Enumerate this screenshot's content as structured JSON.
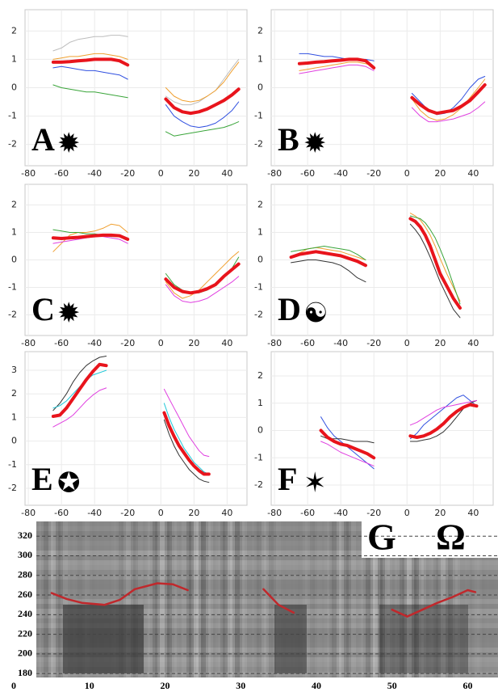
{
  "chart_data": [
    {
      "type": "line",
      "label": "A",
      "symbol": "✹",
      "grid": true,
      "xlim": [
        -82,
        52
      ],
      "ylim": [
        -2.75,
        2.75
      ],
      "xticks": [
        -80,
        -60,
        -40,
        -20,
        0,
        20,
        40
      ],
      "yticks": [
        -2,
        -1,
        0,
        1,
        2
      ],
      "x": [
        -65,
        -60,
        -55,
        -50,
        -45,
        -40,
        -35,
        -30,
        -25,
        -20,
        -8,
        3,
        8,
        13,
        18,
        23,
        28,
        33,
        38,
        43,
        47
      ],
      "series": [
        {
          "color": "#bdbdbd",
          "width": 1,
          "values": [
            1.3,
            1.4,
            1.6,
            1.7,
            1.75,
            1.8,
            1.8,
            1.85,
            1.85,
            1.8,
            null,
            -0.3,
            -0.5,
            -0.6,
            -0.6,
            -0.5,
            -0.3,
            -0.1,
            0.3,
            0.7,
            1.0
          ]
        },
        {
          "color": "#3aa53a",
          "width": 1,
          "values": [
            0.1,
            0.0,
            -0.05,
            -0.1,
            -0.15,
            -0.15,
            -0.2,
            -0.25,
            -0.3,
            -0.35,
            null,
            -1.55,
            -1.7,
            -1.65,
            -1.6,
            -1.55,
            -1.5,
            -1.45,
            -1.4,
            -1.3,
            -1.2
          ]
        },
        {
          "color": "#3050e0",
          "width": 1,
          "values": [
            0.7,
            0.75,
            0.7,
            0.65,
            0.6,
            0.6,
            0.55,
            0.5,
            0.45,
            0.3,
            null,
            -0.6,
            -1.0,
            -1.2,
            -1.35,
            -1.4,
            -1.35,
            -1.25,
            -1.05,
            -0.8,
            -0.5
          ]
        },
        {
          "color": "#f0a030",
          "width": 1,
          "values": [
            1.0,
            1.05,
            1.1,
            1.1,
            1.15,
            1.2,
            1.2,
            1.15,
            1.1,
            1.0,
            null,
            0.0,
            -0.3,
            -0.45,
            -0.5,
            -0.45,
            -0.3,
            -0.1,
            0.2,
            0.6,
            0.9
          ]
        },
        {
          "color": "#e8141c",
          "width": 4,
          "values": [
            0.9,
            0.9,
            0.92,
            0.95,
            0.97,
            1.0,
            1.0,
            1.0,
            0.95,
            0.8,
            null,
            -0.4,
            -0.7,
            -0.85,
            -0.9,
            -0.85,
            -0.75,
            -0.6,
            -0.45,
            -0.25,
            -0.05
          ]
        }
      ]
    },
    {
      "type": "line",
      "label": "B",
      "symbol": "✹",
      "grid": true,
      "xlim": [
        -82,
        52
      ],
      "ylim": [
        -2.75,
        2.75
      ],
      "xticks": [
        -80,
        -60,
        -40,
        -20,
        0,
        20,
        40
      ],
      "yticks": [
        -2,
        -1,
        0,
        1,
        2
      ],
      "x": [
        -65,
        -60,
        -55,
        -50,
        -45,
        -40,
        -35,
        -30,
        -25,
        -20,
        -8,
        3,
        8,
        13,
        18,
        23,
        28,
        33,
        38,
        43,
        47
      ],
      "series": [
        {
          "color": "#3050e0",
          "width": 1,
          "values": [
            1.2,
            1.2,
            1.15,
            1.1,
            1.1,
            1.05,
            1.0,
            1.0,
            1.0,
            0.95,
            null,
            -0.2,
            -0.5,
            -0.8,
            -0.95,
            -0.9,
            -0.7,
            -0.4,
            0.0,
            0.3,
            0.4
          ]
        },
        {
          "color": "#e040e0",
          "width": 1,
          "values": [
            0.5,
            0.55,
            0.6,
            0.65,
            0.7,
            0.75,
            0.8,
            0.8,
            0.75,
            0.6,
            null,
            -0.7,
            -1.0,
            -1.2,
            -1.2,
            -1.15,
            -1.1,
            -1.0,
            -0.9,
            -0.7,
            -0.5
          ]
        },
        {
          "color": "#f0a030",
          "width": 1,
          "values": [
            0.6,
            0.65,
            0.7,
            0.75,
            0.8,
            0.85,
            0.9,
            0.9,
            0.85,
            0.75,
            null,
            -0.4,
            -0.8,
            -1.05,
            -1.15,
            -1.1,
            -0.95,
            -0.7,
            -0.35,
            0.0,
            0.3
          ]
        },
        {
          "color": "#e8141c",
          "width": 4,
          "values": [
            0.85,
            0.87,
            0.9,
            0.92,
            0.95,
            0.97,
            1.0,
            1.0,
            0.95,
            0.7,
            null,
            -0.35,
            -0.6,
            -0.8,
            -0.9,
            -0.85,
            -0.8,
            -0.65,
            -0.45,
            -0.15,
            0.1
          ]
        }
      ]
    },
    {
      "type": "line",
      "label": "C",
      "symbol": "✹",
      "grid": true,
      "xlim": [
        -82,
        52
      ],
      "ylim": [
        -2.75,
        2.75
      ],
      "xticks": [
        -80,
        -60,
        -40,
        -20,
        0,
        20,
        40
      ],
      "yticks": [
        -2,
        -1,
        0,
        1,
        2
      ],
      "x": [
        -65,
        -60,
        -55,
        -50,
        -45,
        -40,
        -35,
        -30,
        -25,
        -20,
        -8,
        3,
        8,
        13,
        18,
        23,
        28,
        33,
        38,
        43,
        47
      ],
      "series": [
        {
          "color": "#f0a030",
          "width": 1,
          "values": [
            0.3,
            0.6,
            0.9,
            1.0,
            1.0,
            1.05,
            1.15,
            1.3,
            1.25,
            1.0,
            null,
            -0.8,
            -1.2,
            -1.4,
            -1.3,
            -1.1,
            -0.8,
            -0.5,
            -0.2,
            0.1,
            0.3
          ]
        },
        {
          "color": "#3aa53a",
          "width": 1,
          "values": [
            1.1,
            1.05,
            1.0,
            1.0,
            0.95,
            0.95,
            0.9,
            0.85,
            0.85,
            0.8,
            null,
            -0.5,
            -0.9,
            -1.1,
            -1.2,
            -1.2,
            -1.1,
            -0.9,
            -0.6,
            -0.3,
            0.1
          ]
        },
        {
          "color": "#e040e0",
          "width": 1,
          "values": [
            0.6,
            0.65,
            0.7,
            0.75,
            0.8,
            0.85,
            0.85,
            0.8,
            0.75,
            0.6,
            null,
            -0.9,
            -1.3,
            -1.5,
            -1.55,
            -1.5,
            -1.4,
            -1.2,
            -1.0,
            -0.8,
            -0.6
          ]
        },
        {
          "color": "#e8141c",
          "width": 4,
          "values": [
            0.8,
            0.78,
            0.8,
            0.82,
            0.85,
            0.88,
            0.9,
            0.9,
            0.88,
            0.75,
            null,
            -0.7,
            -1.0,
            -1.15,
            -1.2,
            -1.15,
            -1.05,
            -0.9,
            -0.6,
            -0.35,
            -0.15
          ]
        }
      ]
    },
    {
      "type": "line",
      "label": "D",
      "symbol": "☯",
      "grid": true,
      "xlim": [
        -82,
        52
      ],
      "ylim": [
        -2.75,
        2.75
      ],
      "xticks": [
        -80,
        -60,
        -40,
        -20,
        0,
        20,
        40
      ],
      "yticks": [
        -2,
        -1,
        0,
        1,
        2
      ],
      "x": [
        -70,
        -65,
        -60,
        -55,
        -50,
        -45,
        -40,
        -35,
        -30,
        -25,
        -10,
        2,
        5,
        8,
        11,
        14,
        17,
        20,
        24,
        28,
        32
      ],
      "series": [
        {
          "color": "#f0a030",
          "width": 1,
          "values": [
            0.1,
            0.25,
            0.4,
            0.45,
            0.4,
            0.35,
            0.3,
            0.2,
            0.1,
            0.0,
            null,
            1.7,
            1.6,
            1.45,
            1.2,
            0.9,
            0.5,
            0.05,
            -0.5,
            -1.0,
            -1.5
          ]
        },
        {
          "color": "#3aa53a",
          "width": 1,
          "values": [
            0.3,
            0.35,
            0.4,
            0.45,
            0.5,
            0.45,
            0.4,
            0.35,
            0.2,
            0.0,
            null,
            1.6,
            1.55,
            1.5,
            1.35,
            1.1,
            0.8,
            0.4,
            -0.2,
            -0.9,
            -1.6
          ]
        },
        {
          "color": "#333333",
          "width": 1,
          "values": [
            -0.1,
            -0.05,
            0.0,
            0.0,
            -0.05,
            -0.1,
            -0.2,
            -0.4,
            -0.65,
            -0.8,
            null,
            1.3,
            1.1,
            0.85,
            0.5,
            0.1,
            -0.35,
            -0.8,
            -1.3,
            -1.8,
            -2.1
          ]
        },
        {
          "color": "#e8141c",
          "width": 4,
          "values": [
            0.1,
            0.2,
            0.25,
            0.3,
            0.25,
            0.2,
            0.15,
            0.05,
            -0.05,
            -0.2,
            null,
            1.5,
            1.4,
            1.2,
            0.9,
            0.5,
            0.0,
            -0.5,
            -0.95,
            -1.4,
            -1.75
          ]
        }
      ]
    },
    {
      "type": "line",
      "label": "E",
      "symbol": "✪",
      "grid": true,
      "xlim": [
        -82,
        52
      ],
      "ylim": [
        -2.72,
        3.79
      ],
      "xticks": [
        -80,
        -60,
        -40,
        -20,
        0,
        20,
        40
      ],
      "yticks": [
        -2,
        -1,
        0,
        1,
        2,
        3
      ],
      "x": [
        -65,
        -61,
        -57,
        -53,
        -49,
        -45,
        -41,
        -37,
        -33,
        -10,
        2,
        5,
        8,
        11,
        14,
        17,
        20,
        23,
        26,
        29
      ],
      "series": [
        {
          "color": "#333333",
          "width": 1,
          "values": [
            1.3,
            1.6,
            2.0,
            2.5,
            2.9,
            3.2,
            3.4,
            3.55,
            3.6,
            null,
            0.9,
            0.3,
            -0.2,
            -0.6,
            -0.9,
            -1.2,
            -1.4,
            -1.6,
            -1.7,
            -1.75
          ]
        },
        {
          "color": "#e040e0",
          "width": 1,
          "values": [
            0.6,
            0.75,
            0.9,
            1.1,
            1.4,
            1.7,
            1.95,
            2.15,
            2.25,
            null,
            2.2,
            1.8,
            1.4,
            1.0,
            0.6,
            0.2,
            -0.1,
            -0.4,
            -0.6,
            -0.65
          ]
        },
        {
          "color": "#20c8d8",
          "width": 1,
          "values": [
            1.4,
            1.5,
            1.7,
            2.0,
            2.3,
            2.6,
            2.8,
            2.9,
            3.0,
            null,
            1.6,
            1.0,
            0.5,
            0.1,
            -0.3,
            -0.6,
            -0.9,
            -1.1,
            -1.3,
            -1.4
          ]
        },
        {
          "color": "#e8141c",
          "width": 4,
          "values": [
            1.05,
            1.1,
            1.4,
            1.8,
            2.2,
            2.6,
            2.95,
            3.25,
            3.2,
            null,
            1.2,
            0.65,
            0.2,
            -0.2,
            -0.5,
            -0.8,
            -1.05,
            -1.25,
            -1.4,
            -1.4
          ]
        }
      ]
    },
    {
      "type": "line",
      "label": "F",
      "symbol": "✶",
      "grid": true,
      "xlim": [
        -82,
        52
      ],
      "ylim": [
        -2.74,
        2.89
      ],
      "xticks": [
        -80,
        -60,
        -40,
        -20,
        0,
        20,
        40
      ],
      "yticks": [
        -2,
        -1,
        0,
        1,
        2
      ],
      "x": [
        -52,
        -48,
        -44,
        -40,
        -36,
        -32,
        -28,
        -24,
        -20,
        -10,
        2,
        6,
        10,
        14,
        18,
        22,
        26,
        30,
        34,
        38,
        42
      ],
      "series": [
        {
          "color": "#3050e0",
          "width": 1,
          "values": [
            0.5,
            0.1,
            -0.2,
            -0.4,
            -0.6,
            -0.8,
            -1.0,
            -1.2,
            -1.4,
            null,
            -0.3,
            -0.1,
            0.2,
            0.4,
            0.6,
            0.8,
            1.0,
            1.2,
            1.3,
            1.1,
            0.9
          ]
        },
        {
          "color": "#333333",
          "width": 1,
          "values": [
            -0.2,
            -0.3,
            -0.3,
            -0.3,
            -0.35,
            -0.4,
            -0.4,
            -0.4,
            -0.45,
            null,
            -0.4,
            -0.4,
            -0.35,
            -0.3,
            -0.2,
            -0.05,
            0.2,
            0.5,
            0.8,
            1.0,
            1.1
          ]
        },
        {
          "color": "#e040e0",
          "width": 1,
          "values": [
            -0.4,
            -0.5,
            -0.65,
            -0.8,
            -0.9,
            -1.0,
            -1.1,
            -1.2,
            -1.3,
            null,
            0.2,
            0.3,
            0.45,
            0.6,
            0.75,
            0.85,
            0.9,
            0.95,
            1.0,
            1.05,
            1.1
          ]
        },
        {
          "color": "#e8141c",
          "width": 4,
          "values": [
            0.0,
            -0.25,
            -0.4,
            -0.5,
            -0.55,
            -0.65,
            -0.75,
            -0.85,
            -1.0,
            null,
            -0.2,
            -0.25,
            -0.2,
            -0.1,
            0.05,
            0.25,
            0.5,
            0.7,
            0.85,
            0.95,
            0.9
          ]
        }
      ]
    },
    {
      "type": "spectrogram",
      "label": "G",
      "symbol": "Ω",
      "grid": true,
      "xlim": [
        0,
        64
      ],
      "ylim": [
        176,
        335
      ],
      "xticks": [
        0,
        10,
        20,
        30,
        40,
        50,
        60
      ],
      "yticks": [
        180,
        200,
        220,
        240,
        260,
        280,
        300,
        320
      ],
      "x": [
        5,
        7,
        9,
        12,
        14,
        16,
        19,
        21,
        23,
        28,
        33,
        35,
        37,
        44,
        50,
        52,
        54,
        56,
        58,
        60,
        61
      ],
      "series": [
        {
          "color": "#c0282c",
          "width": 2.5,
          "values": [
            262,
            256,
            252,
            250,
            255,
            266,
            272,
            271,
            265,
            null,
            266,
            250,
            242,
            null,
            245,
            238,
            245,
            252,
            258,
            265,
            263
          ]
        }
      ]
    }
  ]
}
